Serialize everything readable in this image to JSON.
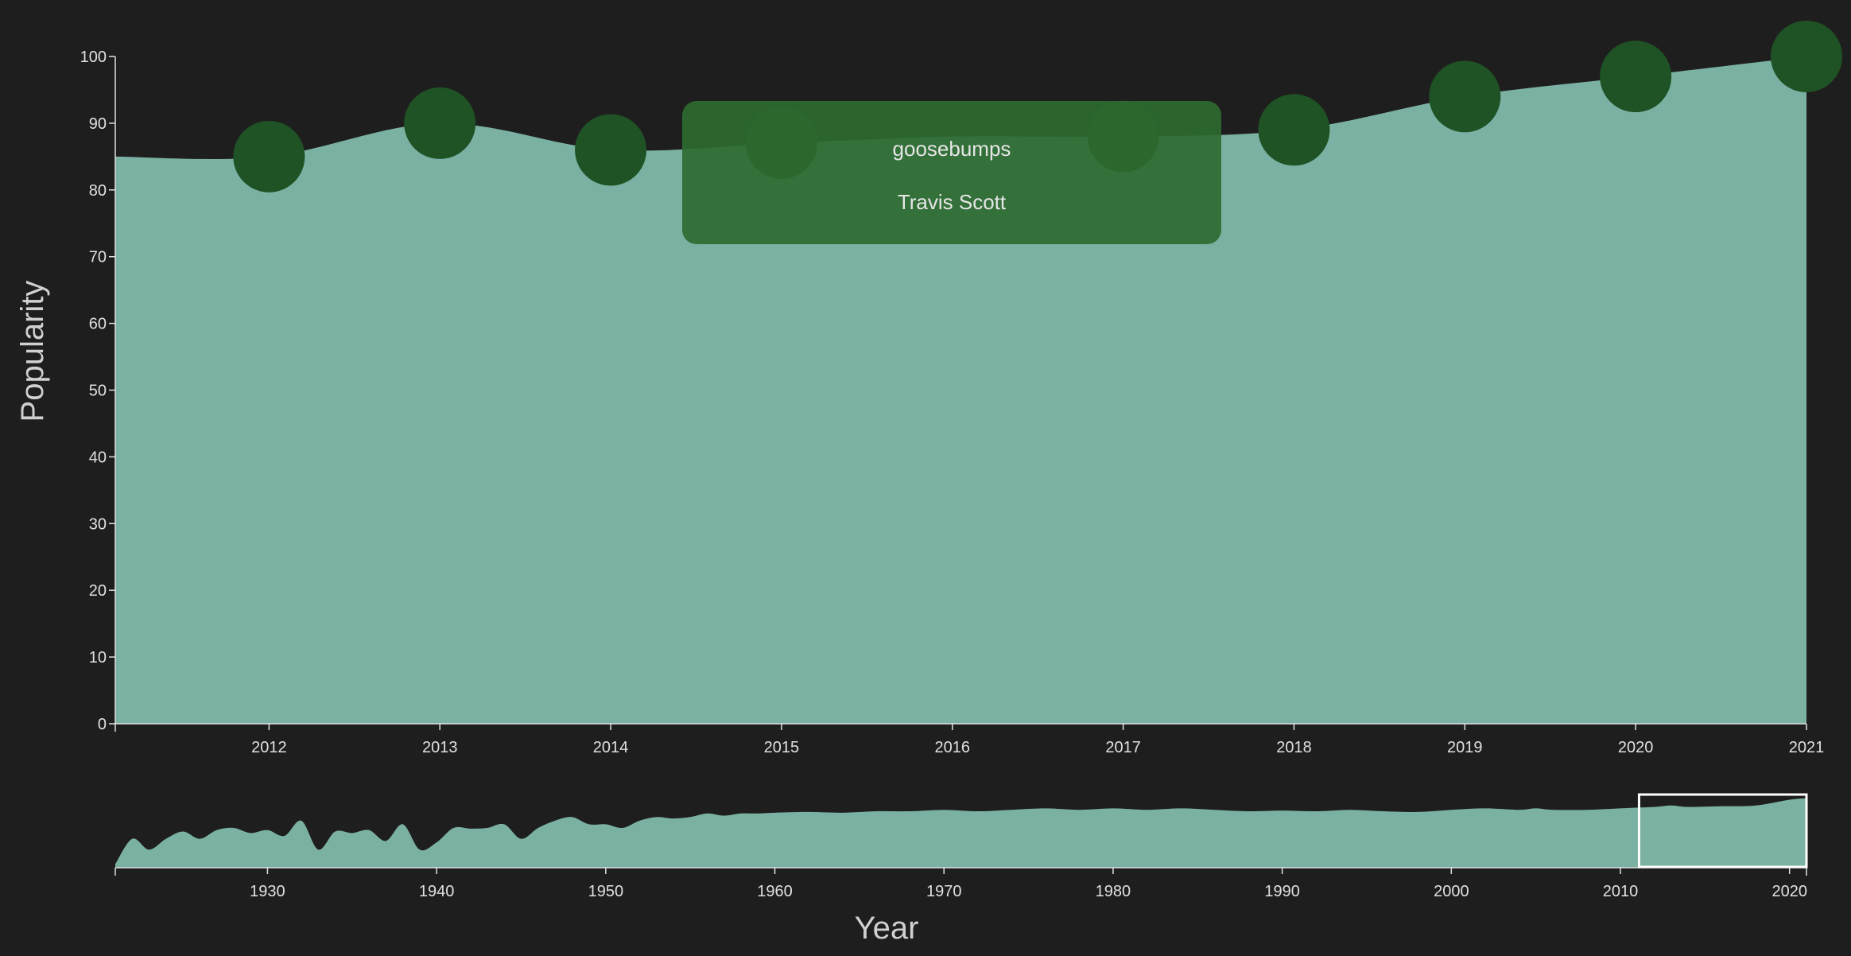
{
  "chart_data": [
    {
      "type": "area",
      "view": "main",
      "xlabel": "",
      "ylabel": "Popularity",
      "xlim": [
        2011.1,
        2021
      ],
      "ylim": [
        0,
        100
      ],
      "x_ticks": [
        2012,
        2013,
        2014,
        2015,
        2016,
        2017,
        2018,
        2019,
        2020,
        2021
      ],
      "y_ticks": [
        0,
        10,
        20,
        30,
        40,
        50,
        60,
        70,
        80,
        90,
        100
      ],
      "area_fill": "#7ab1a2",
      "point_color": "#1f5224",
      "x": [
        2011.1,
        2012,
        2013,
        2014,
        2015,
        2016,
        2017,
        2018,
        2019,
        2020,
        2021
      ],
      "y": [
        85,
        85,
        90,
        86,
        87,
        88,
        88,
        89,
        94,
        97,
        100
      ],
      "points": [
        {
          "x": 2012,
          "y": 85
        },
        {
          "x": 2013,
          "y": 90
        },
        {
          "x": 2014,
          "y": 86
        },
        {
          "x": 2015,
          "y": 87
        },
        {
          "x": 2017,
          "y": 88
        },
        {
          "x": 2018,
          "y": 89
        },
        {
          "x": 2019,
          "y": 94
        },
        {
          "x": 2020,
          "y": 97
        },
        {
          "x": 2021,
          "y": 100
        }
      ],
      "tooltip": {
        "song": "goosebumps",
        "artist": "Travis Scott",
        "background": "#2e6a30"
      }
    },
    {
      "type": "area",
      "view": "context",
      "xlabel": "Year",
      "xlim": [
        1921,
        2021
      ],
      "ylim": [
        0,
        100
      ],
      "x_ticks": [
        1930,
        1940,
        1950,
        1960,
        1970,
        1980,
        1990,
        2000,
        2010,
        2020
      ],
      "brush_range": [
        2011.1,
        2021
      ],
      "x": [
        1921,
        1922,
        1923,
        1924,
        1925,
        1926,
        1927,
        1928,
        1929,
        1930,
        1931,
        1932,
        1933,
        1934,
        1935,
        1936,
        1937,
        1938,
        1939,
        1940,
        1941,
        1942,
        1943,
        1944,
        1945,
        1946,
        1947,
        1948,
        1949,
        1950,
        1951,
        1952,
        1953,
        1954,
        1955,
        1956,
        1957,
        1958,
        1959,
        1960,
        1962,
        1964,
        1966,
        1968,
        1970,
        1972,
        1974,
        1976,
        1978,
        1980,
        1982,
        1984,
        1986,
        1988,
        1990,
        1992,
        1994,
        1996,
        1998,
        2000,
        2002,
        2004,
        2005,
        2006,
        2008,
        2010,
        2012,
        2013,
        2014,
        2016,
        2018,
        2020,
        2021
      ],
      "y": [
        5,
        40,
        25,
        40,
        50,
        40,
        52,
        55,
        48,
        52,
        44,
        65,
        25,
        50,
        48,
        52,
        37,
        60,
        25,
        35,
        55,
        54,
        55,
        60,
        40,
        55,
        65,
        70,
        60,
        60,
        55,
        65,
        70,
        68,
        70,
        75,
        72,
        75,
        75,
        76,
        77,
        76,
        78,
        78,
        80,
        78,
        80,
        82,
        80,
        82,
        80,
        82,
        80,
        78,
        79,
        78,
        80,
        78,
        77,
        80,
        82,
        80,
        82,
        80,
        80,
        82,
        84,
        86,
        84,
        85,
        86,
        94,
        96
      ]
    }
  ]
}
